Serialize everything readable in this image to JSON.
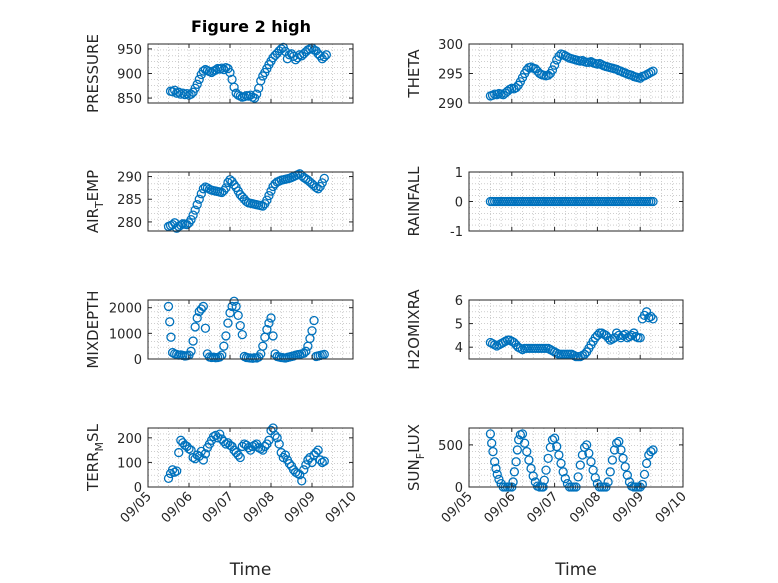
{
  "figure_title": "Figure 2 high",
  "x_axis_label": "Time",
  "x_tick_labels": [
    "09/05",
    "09/06",
    "09/07",
    "09/08",
    "09/09",
    "09/10"
  ],
  "marker_color": "#0072BD",
  "chart_data": [
    {
      "id": "pressure",
      "type": "scatter",
      "title": "Figure 2 high",
      "ylabel": "PRESSURE",
      "xlabel": "",
      "ylim": [
        840,
        960
      ],
      "yticks": [
        850,
        900,
        950
      ],
      "ytick_labels": [
        "850",
        "900",
        "950"
      ],
      "x": [
        5.55,
        5.6,
        5.65,
        5.7,
        5.75,
        5.8,
        5.85,
        5.9,
        5.95,
        6.0,
        6.05,
        6.1,
        6.15,
        6.2,
        6.25,
        6.3,
        6.35,
        6.4,
        6.45,
        6.5,
        6.55,
        6.6,
        6.65,
        6.7,
        6.75,
        6.8,
        6.85,
        6.9,
        6.95,
        7.0,
        7.05,
        7.1,
        7.15,
        7.2,
        7.25,
        7.3,
        7.35,
        7.4,
        7.45,
        7.5,
        7.55,
        7.6,
        7.65,
        7.7,
        7.75,
        7.8,
        7.85,
        7.9,
        7.95,
        8.0,
        8.05,
        8.1,
        8.15,
        8.2,
        8.25,
        8.3,
        8.35,
        8.4,
        8.45,
        8.5,
        8.55,
        8.6,
        8.65,
        8.7,
        8.75,
        8.8,
        8.85,
        8.9,
        8.95,
        9.0,
        9.05,
        9.1,
        9.15,
        9.2,
        9.25,
        9.3,
        9.35
      ],
      "y": [
        864,
        863,
        866,
        860,
        862,
        858,
        860,
        857,
        859,
        856,
        858,
        862,
        870,
        878,
        888,
        898,
        905,
        908,
        906,
        904,
        902,
        905,
        907,
        910,
        909,
        911,
        908,
        912,
        910,
        902,
        888,
        872,
        860,
        856,
        854,
        852,
        853,
        855,
        854,
        856,
        852,
        850,
        858,
        870,
        885,
        895,
        902,
        910,
        918,
        925,
        932,
        937,
        941,
        946,
        950,
        953,
        945,
        930,
        938,
        940,
        935,
        928,
        932,
        938,
        936,
        940,
        944,
        948,
        950,
        952,
        948,
        946,
        940,
        936,
        930,
        934,
        938
      ]
    },
    {
      "id": "theta",
      "type": "scatter",
      "title": "",
      "ylabel": "THETA",
      "xlabel": "",
      "ylim": [
        290,
        300
      ],
      "yticks": [
        290,
        295,
        300
      ],
      "ytick_labels": [
        "290",
        "295",
        "300"
      ],
      "x": [
        5.5,
        5.55,
        5.6,
        5.65,
        5.7,
        5.75,
        5.8,
        5.85,
        5.9,
        5.95,
        6.0,
        6.05,
        6.1,
        6.15,
        6.2,
        6.25,
        6.3,
        6.35,
        6.4,
        6.45,
        6.5,
        6.55,
        6.6,
        6.65,
        6.7,
        6.75,
        6.8,
        6.85,
        6.9,
        6.95,
        7.0,
        7.05,
        7.1,
        7.15,
        7.2,
        7.25,
        7.3,
        7.35,
        7.4,
        7.45,
        7.5,
        7.55,
        7.6,
        7.65,
        7.7,
        7.75,
        7.8,
        7.85,
        7.9,
        7.95,
        8.0,
        8.05,
        8.1,
        8.15,
        8.2,
        8.25,
        8.3,
        8.35,
        8.4,
        8.45,
        8.5,
        8.55,
        8.6,
        8.65,
        8.7,
        8.75,
        8.8,
        8.85,
        8.9,
        8.95,
        9.0,
        9.05,
        9.1,
        9.15,
        9.2,
        9.25,
        9.3
      ],
      "y": [
        291.2,
        291.3,
        291.5,
        291.4,
        291.6,
        291.5,
        291.4,
        291.7,
        292.0,
        292.3,
        292.5,
        292.4,
        292.6,
        293.0,
        293.6,
        294.3,
        295.0,
        295.6,
        296.0,
        296.1,
        295.9,
        295.8,
        295.4,
        295.0,
        294.8,
        294.7,
        294.6,
        294.7,
        295.0,
        295.6,
        296.4,
        297.3,
        297.9,
        298.3,
        298.2,
        298.0,
        297.8,
        297.6,
        297.5,
        297.4,
        297.3,
        297.2,
        297.1,
        297.2,
        297.0,
        296.9,
        296.9,
        297.0,
        296.8,
        296.7,
        296.6,
        296.7,
        296.5,
        296.3,
        296.2,
        296.1,
        296.0,
        295.9,
        295.8,
        295.7,
        295.5,
        295.4,
        295.2,
        295.1,
        294.9,
        294.8,
        294.7,
        294.5,
        294.4,
        294.3,
        294.2,
        294.5,
        294.6,
        294.8,
        295.0,
        295.2,
        295.4
      ]
    },
    {
      "id": "air_temp",
      "type": "scatter",
      "title": "",
      "ylabel": "AIR",
      "ylabel_sub": "T",
      "ylabel_rest": "EMP",
      "xlabel": "",
      "ylim": [
        278,
        291
      ],
      "yticks": [
        280,
        285,
        290
      ],
      "ytick_labels": [
        "280",
        "285",
        "290"
      ],
      "x": [
        5.5,
        5.55,
        5.6,
        5.65,
        5.7,
        5.75,
        5.8,
        5.85,
        5.9,
        5.95,
        6.0,
        6.05,
        6.1,
        6.15,
        6.2,
        6.25,
        6.3,
        6.35,
        6.4,
        6.45,
        6.5,
        6.55,
        6.6,
        6.65,
        6.7,
        6.75,
        6.8,
        6.85,
        6.9,
        6.95,
        7.0,
        7.05,
        7.1,
        7.15,
        7.2,
        7.25,
        7.3,
        7.35,
        7.4,
        7.45,
        7.5,
        7.55,
        7.6,
        7.65,
        7.7,
        7.75,
        7.8,
        7.85,
        7.9,
        7.95,
        8.0,
        8.05,
        8.1,
        8.15,
        8.2,
        8.25,
        8.3,
        8.35,
        8.4,
        8.45,
        8.5,
        8.55,
        8.6,
        8.65,
        8.7,
        8.75,
        8.8,
        8.85,
        8.9,
        8.95,
        9.0,
        9.05,
        9.1,
        9.15,
        9.2,
        9.25,
        9.3
      ],
      "y": [
        279.0,
        279.2,
        279.4,
        279.8,
        278.6,
        279.0,
        279.3,
        279.6,
        279.5,
        279.4,
        279.8,
        280.5,
        281.5,
        282.6,
        283.8,
        285.0,
        286.2,
        287.3,
        287.7,
        287.5,
        287.2,
        287.0,
        286.9,
        286.8,
        286.7,
        286.6,
        286.5,
        286.9,
        287.5,
        288.7,
        289.3,
        288.9,
        288.2,
        287.6,
        286.8,
        286.0,
        285.5,
        285.0,
        284.5,
        284.2,
        284.1,
        284.0,
        283.9,
        283.8,
        283.7,
        283.6,
        283.5,
        284.0,
        284.8,
        285.8,
        286.8,
        287.8,
        288.4,
        288.8,
        289.0,
        289.2,
        289.3,
        289.4,
        289.5,
        289.6,
        289.8,
        290.0,
        290.2,
        290.4,
        290.6,
        290.2,
        289.8,
        289.5,
        289.2,
        288.8,
        288.4,
        288.0,
        287.6,
        287.3,
        287.8,
        288.6,
        289.6
      ]
    },
    {
      "id": "rainfall",
      "type": "scatter",
      "title": "",
      "ylabel": "RAINFALL",
      "xlabel": "",
      "ylim": [
        -1,
        1
      ],
      "yticks": [
        -1,
        0,
        1
      ],
      "ytick_labels": [
        "-1",
        "0",
        "1"
      ],
      "x": [
        5.5,
        5.55,
        5.6,
        5.65,
        5.7,
        5.75,
        5.8,
        5.85,
        5.9,
        5.95,
        6.0,
        6.05,
        6.1,
        6.15,
        6.2,
        6.25,
        6.3,
        6.35,
        6.4,
        6.45,
        6.5,
        6.55,
        6.6,
        6.65,
        6.7,
        6.75,
        6.8,
        6.85,
        6.9,
        6.95,
        7.0,
        7.05,
        7.1,
        7.15,
        7.2,
        7.25,
        7.3,
        7.35,
        7.4,
        7.45,
        7.5,
        7.55,
        7.6,
        7.65,
        7.7,
        7.75,
        7.8,
        7.85,
        7.9,
        7.95,
        8.0,
        8.05,
        8.1,
        8.15,
        8.2,
        8.25,
        8.3,
        8.35,
        8.4,
        8.45,
        8.5,
        8.55,
        8.6,
        8.65,
        8.7,
        8.75,
        8.8,
        8.85,
        8.9,
        8.95,
        9.0,
        9.05,
        9.1,
        9.15,
        9.2,
        9.25,
        9.3
      ],
      "y": [
        0,
        0,
        0,
        0,
        0,
        0,
        0,
        0,
        0,
        0,
        0,
        0,
        0,
        0,
        0,
        0,
        0,
        0,
        0,
        0,
        0,
        0,
        0,
        0,
        0,
        0,
        0,
        0,
        0,
        0,
        0,
        0,
        0,
        0,
        0,
        0,
        0,
        0,
        0,
        0,
        0,
        0,
        0,
        0,
        0,
        0,
        0,
        0,
        0,
        0,
        0,
        0,
        0,
        0,
        0,
        0,
        0,
        0,
        0,
        0,
        0,
        0,
        0,
        0,
        0,
        0,
        0,
        0,
        0,
        0,
        0,
        0,
        0,
        0,
        0,
        0,
        0
      ]
    },
    {
      "id": "mixdepth",
      "type": "scatter",
      "title": "",
      "ylabel": "MIXDEPTH",
      "xlabel": "",
      "ylim": [
        0,
        2300
      ],
      "yticks": [
        0,
        1000,
        2000
      ],
      "ytick_labels": [
        "0",
        "1000",
        "2000"
      ],
      "x": [
        5.5,
        5.53,
        5.56,
        5.6,
        5.65,
        5.7,
        5.75,
        5.8,
        5.85,
        5.9,
        5.95,
        6.0,
        6.05,
        6.1,
        6.15,
        6.2,
        6.25,
        6.3,
        6.35,
        6.4,
        6.45,
        6.5,
        6.55,
        6.6,
        6.65,
        6.7,
        6.75,
        6.8,
        6.85,
        6.9,
        6.95,
        7.0,
        7.05,
        7.1,
        7.15,
        7.2,
        7.25,
        7.3,
        7.35,
        7.4,
        7.45,
        7.5,
        7.55,
        7.6,
        7.65,
        7.7,
        7.75,
        7.8,
        7.85,
        7.9,
        7.95,
        8.0,
        8.05,
        8.1,
        8.15,
        8.2,
        8.25,
        8.3,
        8.35,
        8.4,
        8.45,
        8.5,
        8.55,
        8.6,
        8.65,
        8.7,
        8.75,
        8.8,
        8.85,
        8.9,
        8.95,
        9.0,
        9.05,
        9.1,
        9.15,
        9.2,
        9.25,
        9.3
      ],
      "y": [
        2050,
        1450,
        850,
        250,
        200,
        180,
        150,
        160,
        140,
        120,
        130,
        150,
        300,
        700,
        1250,
        1600,
        1850,
        1950,
        2050,
        1200,
        200,
        80,
        60,
        70,
        50,
        60,
        80,
        150,
        500,
        900,
        1400,
        1800,
        2050,
        2250,
        2050,
        1700,
        1300,
        950,
        100,
        60,
        50,
        40,
        30,
        50,
        40,
        80,
        200,
        500,
        850,
        1150,
        1400,
        1600,
        900,
        200,
        100,
        80,
        60,
        50,
        40,
        60,
        80,
        100,
        120,
        150,
        170,
        180,
        200,
        220,
        300,
        500,
        800,
        1100,
        1500,
        100,
        120,
        140,
        160,
        180
      ]
    },
    {
      "id": "h2omixra",
      "type": "scatter",
      "title": "",
      "ylabel": "H2OMIXRA",
      "xlabel": "",
      "ylim": [
        3.5,
        6
      ],
      "yticks": [
        4,
        5,
        6
      ],
      "ytick_labels": [
        "4",
        "5",
        "6"
      ],
      "x": [
        5.5,
        5.55,
        5.6,
        5.65,
        5.7,
        5.75,
        5.8,
        5.85,
        5.9,
        5.95,
        6.0,
        6.05,
        6.1,
        6.15,
        6.2,
        6.25,
        6.3,
        6.35,
        6.4,
        6.45,
        6.5,
        6.55,
        6.6,
        6.65,
        6.7,
        6.75,
        6.8,
        6.85,
        6.9,
        6.95,
        7.0,
        7.05,
        7.1,
        7.15,
        7.2,
        7.25,
        7.3,
        7.35,
        7.4,
        7.45,
        7.5,
        7.55,
        7.6,
        7.65,
        7.7,
        7.75,
        7.8,
        7.85,
        7.9,
        7.95,
        8.0,
        8.05,
        8.1,
        8.15,
        8.2,
        8.25,
        8.3,
        8.35,
        8.4,
        8.45,
        8.5,
        8.55,
        8.6,
        8.65,
        8.7,
        8.75,
        8.8,
        8.85,
        8.9,
        8.95,
        9.0,
        9.05,
        9.1,
        9.15,
        9.2,
        9.25,
        9.3
      ],
      "y": [
        4.2,
        4.15,
        4.1,
        4.05,
        4.1,
        4.15,
        4.2,
        4.25,
        4.3,
        4.3,
        4.25,
        4.2,
        4.1,
        4.0,
        3.95,
        3.9,
        3.95,
        3.95,
        3.95,
        3.95,
        3.95,
        3.95,
        3.95,
        3.95,
        3.95,
        3.95,
        3.95,
        3.95,
        3.9,
        3.85,
        3.8,
        3.75,
        3.7,
        3.7,
        3.7,
        3.7,
        3.7,
        3.7,
        3.7,
        3.65,
        3.6,
        3.6,
        3.6,
        3.65,
        3.7,
        3.8,
        3.95,
        4.1,
        4.25,
        4.4,
        4.5,
        4.6,
        4.6,
        4.55,
        4.5,
        4.4,
        4.3,
        4.35,
        4.4,
        4.6,
        4.5,
        4.4,
        4.5,
        4.55,
        4.4,
        4.45,
        4.5,
        4.6,
        4.45,
        4.4,
        4.4,
        5.2,
        5.35,
        5.5,
        5.25,
        5.3,
        5.2
      ]
    },
    {
      "id": "terr_msl",
      "type": "scatter",
      "title": "",
      "ylabel": "TERR",
      "ylabel_sub": "M",
      "ylabel_rest": "SL",
      "xlabel": "Time",
      "ylim": [
        0,
        240
      ],
      "yticks": [
        0,
        100,
        200
      ],
      "ytick_labels": [
        "0",
        "100",
        "200"
      ],
      "xticks": [
        5,
        6,
        7,
        8,
        9,
        10
      ],
      "x": [
        5.5,
        5.55,
        5.6,
        5.65,
        5.7,
        5.75,
        5.8,
        5.85,
        5.9,
        5.95,
        6.0,
        6.05,
        6.1,
        6.15,
        6.2,
        6.25,
        6.3,
        6.35,
        6.4,
        6.45,
        6.5,
        6.55,
        6.6,
        6.65,
        6.7,
        6.75,
        6.8,
        6.85,
        6.9,
        6.95,
        7.0,
        7.05,
        7.1,
        7.15,
        7.2,
        7.25,
        7.3,
        7.35,
        7.4,
        7.45,
        7.5,
        7.55,
        7.6,
        7.65,
        7.7,
        7.75,
        7.8,
        7.85,
        7.9,
        7.95,
        8.0,
        8.05,
        8.1,
        8.15,
        8.2,
        8.25,
        8.3,
        8.35,
        8.4,
        8.45,
        8.5,
        8.55,
        8.6,
        8.65,
        8.7,
        8.75,
        8.8,
        8.85,
        8.9,
        8.95,
        9.0,
        9.05,
        9.1,
        9.15,
        9.2,
        9.25,
        9.3
      ],
      "y": [
        35,
        55,
        70,
        60,
        65,
        140,
        190,
        180,
        170,
        165,
        155,
        150,
        120,
        115,
        130,
        125,
        145,
        110,
        135,
        160,
        175,
        190,
        205,
        210,
        200,
        215,
        195,
        185,
        175,
        180,
        170,
        165,
        150,
        140,
        130,
        120,
        165,
        175,
        170,
        160,
        150,
        165,
        170,
        175,
        160,
        155,
        150,
        165,
        175,
        190,
        230,
        240,
        210,
        200,
        175,
        140,
        120,
        130,
        110,
        95,
        85,
        70,
        60,
        55,
        50,
        25,
        70,
        90,
        110,
        120,
        100,
        130,
        140,
        150,
        110,
        100,
        105
      ]
    },
    {
      "id": "sun_flux",
      "type": "scatter",
      "title": "",
      "ylabel": "SUN",
      "ylabel_sub": "F",
      "ylabel_rest": "LUX",
      "xlabel": "Time",
      "ylim": [
        0,
        700
      ],
      "yticks": [
        0,
        500
      ],
      "ytick_labels": [
        "0",
        "500"
      ],
      "xticks": [
        5,
        6,
        7,
        8,
        9,
        10
      ],
      "x": [
        5.5,
        5.53,
        5.56,
        5.6,
        5.63,
        5.66,
        5.7,
        5.75,
        5.8,
        5.85,
        5.9,
        5.95,
        6.0,
        6.03,
        6.06,
        6.1,
        6.13,
        6.16,
        6.2,
        6.25,
        6.3,
        6.35,
        6.4,
        6.45,
        6.5,
        6.55,
        6.6,
        6.65,
        6.7,
        6.73,
        6.76,
        6.8,
        6.85,
        6.9,
        6.95,
        7.0,
        7.05,
        7.1,
        7.15,
        7.2,
        7.25,
        7.3,
        7.35,
        7.4,
        7.45,
        7.5,
        7.55,
        7.6,
        7.65,
        7.7,
        7.75,
        7.8,
        7.85,
        7.9,
        7.95,
        8.0,
        8.05,
        8.1,
        8.15,
        8.2,
        8.25,
        8.3,
        8.35,
        8.4,
        8.45,
        8.5,
        8.55,
        8.6,
        8.65,
        8.7,
        8.75,
        8.8,
        8.85,
        8.9,
        8.95,
        9.0,
        9.05,
        9.1,
        9.15,
        9.2,
        9.25,
        9.3
      ],
      "y": [
        630,
        520,
        420,
        300,
        220,
        150,
        90,
        40,
        0,
        0,
        0,
        0,
        0,
        60,
        180,
        300,
        440,
        560,
        620,
        630,
        520,
        420,
        320,
        220,
        130,
        60,
        10,
        0,
        0,
        0,
        80,
        200,
        340,
        470,
        560,
        580,
        480,
        380,
        280,
        180,
        100,
        40,
        0,
        0,
        0,
        0,
        120,
        260,
        380,
        470,
        500,
        400,
        300,
        200,
        110,
        40,
        0,
        0,
        0,
        0,
        60,
        180,
        320,
        440,
        520,
        540,
        440,
        340,
        240,
        140,
        60,
        10,
        0,
        0,
        0,
        0,
        30,
        150,
        280,
        380,
        420,
        440
      ]
    }
  ]
}
